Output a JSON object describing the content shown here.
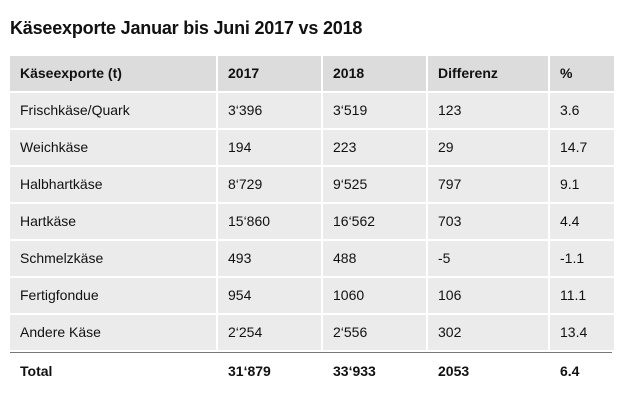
{
  "title": "Käseexporte Januar bis Juni 2017 vs 2018",
  "table": {
    "header": [
      "Käseexporte (t)",
      "2017",
      "2018",
      "Differenz",
      "%"
    ],
    "rows": [
      [
        "Frischkäse/Quark",
        "3‘396",
        "3‘519",
        "123",
        "3.6"
      ],
      [
        "Weichkäse",
        "194",
        "223",
        "29",
        "14.7"
      ],
      [
        "Halbhartkäse",
        "8‘729",
        "9‘525",
        "797",
        "9.1"
      ],
      [
        "Hartkäse",
        "15‘860",
        "16‘562",
        "703",
        "4.4"
      ],
      [
        "Schmelzkäse",
        "493",
        "488",
        "-5",
        "-1.1"
      ],
      [
        "Fertigfondue",
        "954",
        "1060",
        "106",
        "11.1"
      ],
      [
        "Andere Käse",
        "2‘254",
        "2‘556",
        "302",
        "13.4"
      ]
    ],
    "total": [
      "Total",
      "31‘879",
      "33‘933",
      "2053",
      "6.4"
    ]
  }
}
